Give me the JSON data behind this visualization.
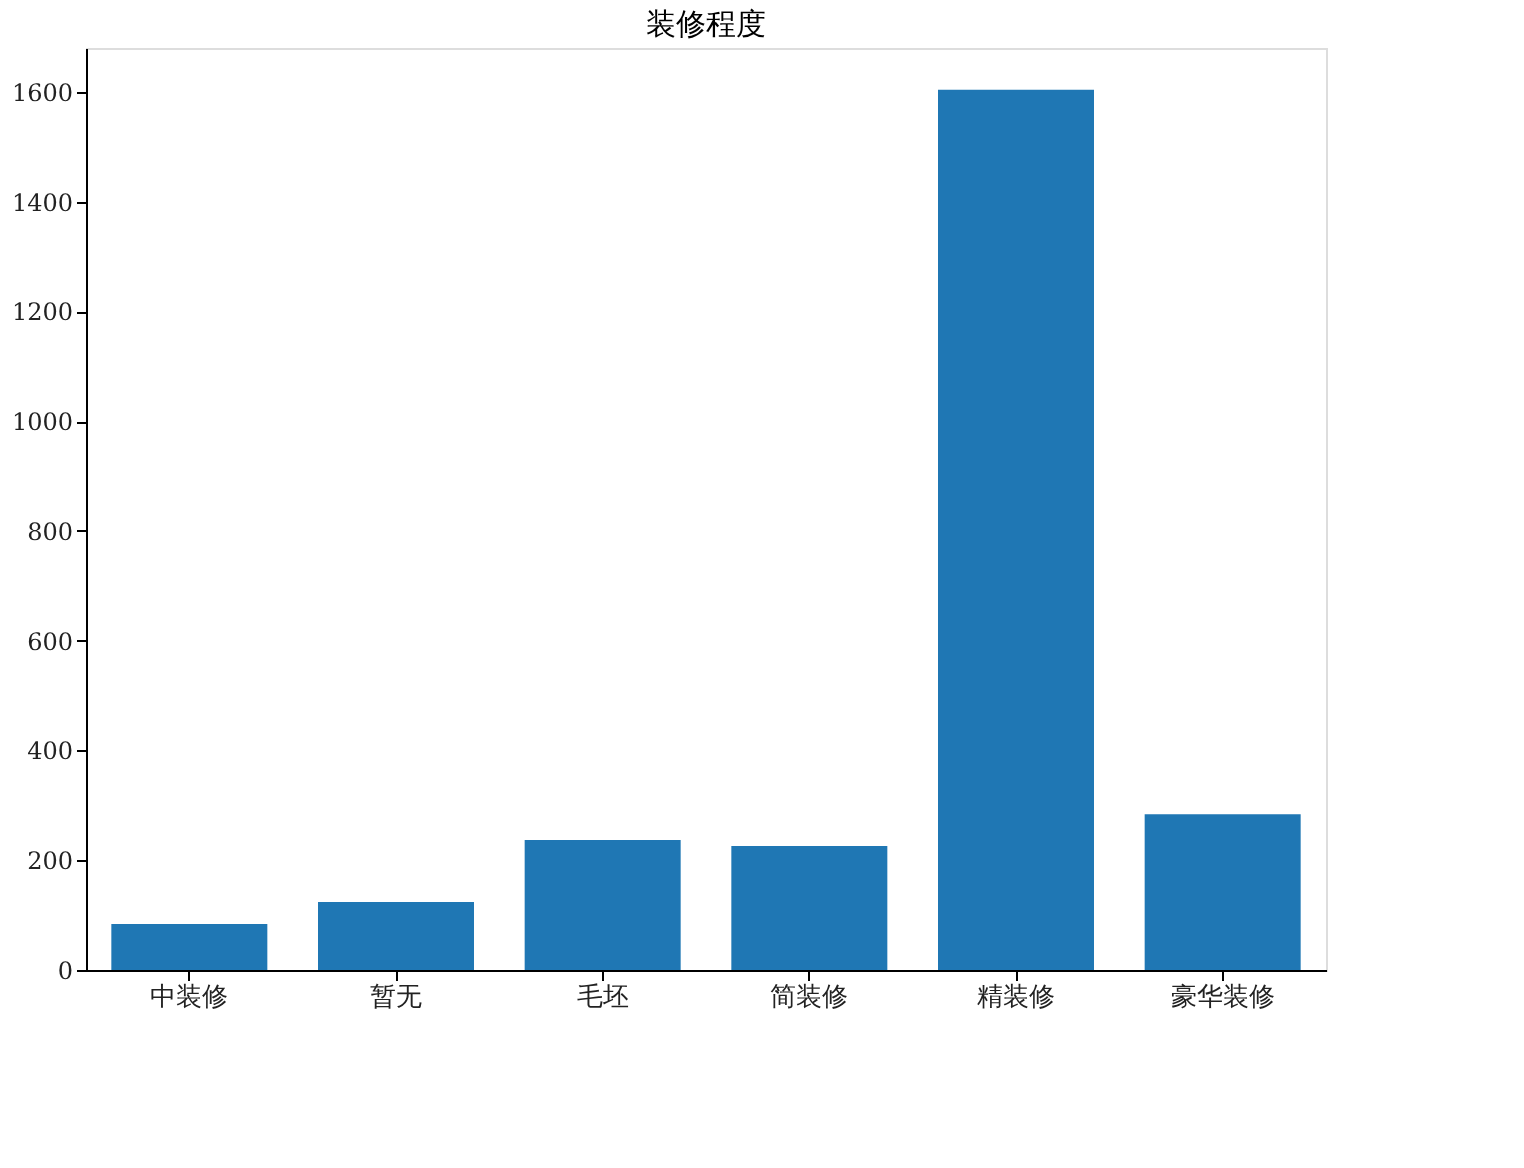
{
  "chart_data": {
    "type": "bar",
    "title": "装修程度",
    "categories": [
      "中装修",
      "暂无",
      "毛坯",
      "简装修",
      "精装修",
      "豪华装修"
    ],
    "values": [
      84,
      124,
      237,
      226,
      1604,
      284
    ],
    "color": "#1f77b4",
    "ylim": [
      0,
      1680
    ],
    "yticks": [
      0,
      200,
      400,
      600,
      800,
      1000,
      1200,
      1400,
      1600
    ],
    "grid": false
  }
}
